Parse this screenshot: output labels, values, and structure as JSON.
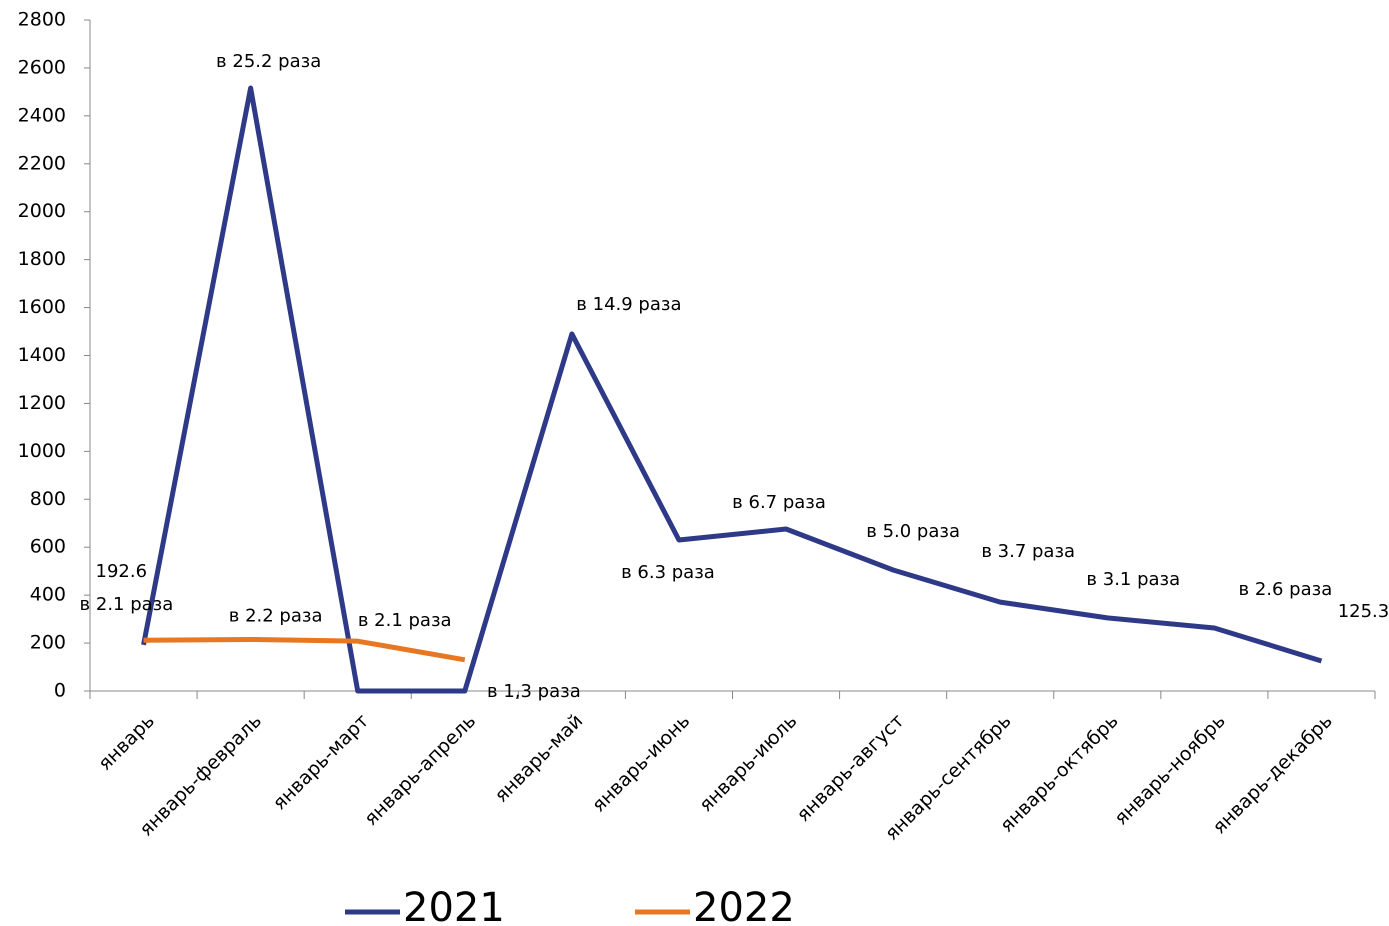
{
  "chart_data": {
    "type": "line",
    "categories": [
      "январь",
      "январь-февраль",
      "январь-март",
      "январь-апрель",
      "январь-май",
      "январь-июнь",
      "январь-июль",
      "январь-август",
      "январь-сентябрь",
      "январь-октябрь",
      "январь-ноябрь",
      "январь-декабрь"
    ],
    "series": [
      {
        "name": "2021",
        "color": "#2e3a87",
        "values": [
          192.6,
          2516,
          0,
          0,
          1490,
          630,
          676,
          505,
          371,
          305,
          263,
          125.3
        ],
        "annotations": [
          "192.6",
          "в  25.2 раза",
          null,
          null,
          "в 14.9 раза",
          "в 6.3 раза",
          "в 6.7 раза",
          "в 5.0 раза",
          "в 3.7 раза",
          "в 3.1 раза",
          "в 2.6 раза",
          "125.3"
        ]
      },
      {
        "name": "2022",
        "color": "#e87722",
        "values": [
          212,
          215,
          208,
          130,
          null,
          null,
          null,
          null,
          null,
          null,
          null,
          null
        ],
        "annotations": [
          "в 2.1 раза",
          "в 2.2 раза",
          "в 2.1 раза",
          "в 1,3 раза",
          null,
          null,
          null,
          null,
          null,
          null,
          null,
          null
        ]
      }
    ],
    "ylim": [
      0,
      2800
    ],
    "yticks": [
      0,
      200,
      400,
      600,
      800,
      1000,
      1200,
      1400,
      1600,
      1800,
      2000,
      2200,
      2400,
      2600,
      2800
    ],
    "legend": "bottom"
  }
}
